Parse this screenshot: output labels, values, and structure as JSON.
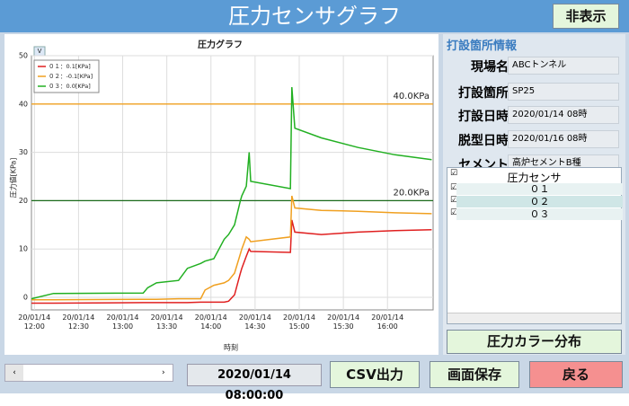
{
  "header": {
    "title": "圧力センサグラフ",
    "toggle_button": "非表示"
  },
  "chart_data": {
    "type": "line",
    "title": "圧力グラフ",
    "y_label": "圧力値[KPa]",
    "x_label": "時刻",
    "expand_button": "V",
    "x": [
      "20/01/14 11:58",
      "20/01/14 12:13",
      "20/01/14 13:14",
      "20/01/14 13:17",
      "20/01/14 13:23",
      "20/01/14 13:38",
      "20/01/14 13:44",
      "20/01/14 13:53",
      "20/01/14 13:56",
      "20/01/14 14:02",
      "20/01/14 14:09",
      "20/01/14 14:12",
      "20/01/14 14:16",
      "20/01/14 14:20",
      "20/01/14 14:21",
      "20/01/14 14:24",
      "20/01/14 14:26",
      "20/01/14 14:27",
      "20/01/14 14:54",
      "20/01/14 14:55",
      "20/01/14 14:57",
      "20/01/14 15:15",
      "20/01/14 15:40",
      "20/01/14 16:05",
      "20/01/14 16:30"
    ],
    "series": [
      {
        "name": "０１：0.1[KPa]",
        "color": "#e02020",
        "values": [
          -1.2,
          -1.2,
          -1.1,
          -1.1,
          -1.1,
          -1.1,
          -1.1,
          -1.0,
          -1.0,
          -1.0,
          -1.0,
          -0.8,
          0.5,
          5,
          6,
          8.5,
          10,
          9.5,
          9.3,
          16,
          13.5,
          13,
          13.5,
          13.8,
          14
        ]
      },
      {
        "name": "０２：-0.1[KPa]",
        "color": "#f0a020",
        "values": [
          -0.5,
          -0.5,
          -0.4,
          -0.4,
          -0.4,
          -0.3,
          -0.3,
          -0.3,
          1.5,
          2.5,
          3,
          3.5,
          5,
          9,
          10,
          12.5,
          12,
          11.5,
          12.5,
          21,
          18.5,
          18,
          17.8,
          17.5,
          17.3
        ]
      },
      {
        "name": "０３：0.0[KPa]",
        "color": "#22b022",
        "values": [
          -0.3,
          0.8,
          0.9,
          2,
          3,
          3.5,
          6,
          7,
          7.5,
          8,
          12,
          13,
          15,
          20,
          21,
          23,
          30,
          24,
          22.5,
          43.5,
          35,
          33,
          31,
          29.5,
          28.5
        ]
      }
    ],
    "xlim": [
      "20/01/14 11:58",
      "20/01/14 16:31"
    ],
    "xticks": [
      {
        "value": "20/01/14 12:00",
        "label": "20/01/14\n12:00"
      },
      {
        "value": "20/01/14 12:30",
        "label": "20/01/14\n12:30"
      },
      {
        "value": "20/01/14 13:00",
        "label": "20/01/14\n13:00"
      },
      {
        "value": "20/01/14 13:30",
        "label": "20/01/14\n13:30"
      },
      {
        "value": "20/01/14 14:00",
        "label": "20/01/14\n14:00"
      },
      {
        "value": "20/01/14 14:30",
        "label": "20/01/14\n14:30"
      },
      {
        "value": "20/01/14 15:00",
        "label": "20/01/14\n15:00"
      },
      {
        "value": "20/01/14 15:30",
        "label": "20/01/14\n15:30"
      },
      {
        "value": "20/01/14 16:00",
        "label": "20/01/14\n16:00"
      }
    ],
    "ylim": [
      -2.6,
      50
    ],
    "yticks": [
      0,
      10,
      20,
      30,
      40,
      50
    ],
    "grid": true,
    "legend": "upper left",
    "reference_lines": [
      {
        "value": 40,
        "label": "40.0KPa",
        "color": "#f0a020"
      },
      {
        "value": 20,
        "label": "20.0KPa",
        "color": "#1a6a1a"
      }
    ]
  },
  "info": {
    "title": "打設箇所情報",
    "fields": [
      {
        "label": "現場名",
        "value": "ABCトンネル"
      },
      {
        "label": "打設箇所",
        "value": "SP25"
      },
      {
        "label": "打設日時",
        "value": "2020/01/14 08時"
      },
      {
        "label": "脱型日時",
        "value": "2020/01/16 08時"
      },
      {
        "label": "セメント",
        "value": "高炉セメントB種"
      }
    ]
  },
  "sensors": {
    "header": "圧力センサ",
    "items": [
      "０１",
      "０２",
      "０３"
    ]
  },
  "color_button": "圧力カラー分布",
  "footer": {
    "datetime": "2020/01/14 08:00:00",
    "csv": "CSV出力",
    "save": "画面保存",
    "back": "戻る"
  }
}
